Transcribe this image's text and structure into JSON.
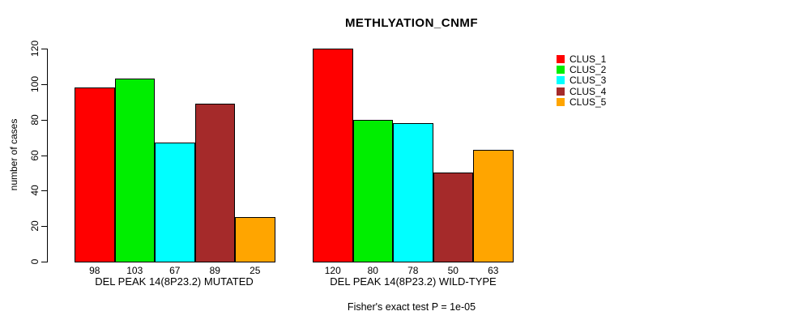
{
  "title": "METHLYATION_CNMF",
  "footer": "Fisher's exact test P = 1e-05",
  "chart_data": {
    "type": "bar",
    "title": "METHLYATION_CNMF",
    "xlabel": "",
    "ylabel": "number of cases",
    "ylim": [
      0,
      120
    ],
    "yticks": [
      0,
      20,
      40,
      60,
      80,
      100,
      120
    ],
    "grid": false,
    "legend_position": "right",
    "series_names": [
      "CLUS_1",
      "CLUS_2",
      "CLUS_3",
      "CLUS_4",
      "CLUS_5"
    ],
    "legend": [
      {
        "label": "CLUS_1",
        "color": "#ff0000"
      },
      {
        "label": "CLUS_2",
        "color": "#00ee00"
      },
      {
        "label": "CLUS_3",
        "color": "#00ffff"
      },
      {
        "label": "CLUS_4",
        "color": "#a52a2a"
      },
      {
        "label": "CLUS_5",
        "color": "#ffa500"
      }
    ],
    "groups": [
      {
        "label": "DEL PEAK 14(8P23.2) MUTATED",
        "values": [
          98,
          103,
          67,
          89,
          25
        ]
      },
      {
        "label": "DEL PEAK 14(8P23.2) WILD-TYPE",
        "values": [
          120,
          80,
          78,
          50,
          63
        ]
      }
    ],
    "bar_value_labels": [
      [
        98,
        103,
        67,
        89,
        25
      ],
      [
        120,
        80,
        78,
        50,
        63
      ]
    ],
    "annotation": "Fisher's exact test P = 1e-05"
  },
  "colors": {
    "background": "#ffffff",
    "axis": "#000000",
    "bar_border": "#000000",
    "text": "#000000"
  }
}
